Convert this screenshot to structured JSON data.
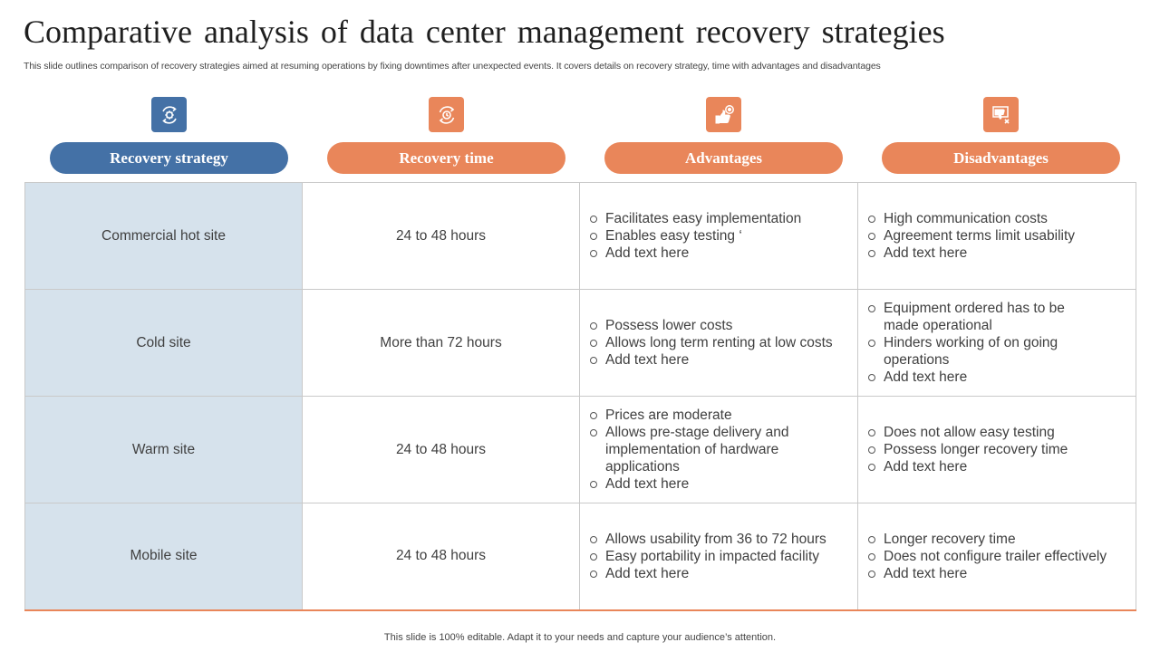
{
  "header": {
    "title": "Comparative analysis of data center management recovery strategies",
    "subtitle": "This slide outlines comparison of recovery strategies aimed at resuming operations by fixing downtimes after unexpected events. It covers details on recovery strategy, time with advantages and disadvantages"
  },
  "columns": [
    {
      "label": "Recovery strategy",
      "icon": "gear-cycle-icon",
      "color": "#4471a6"
    },
    {
      "label": "Recovery time",
      "icon": "clock-cycle-icon",
      "color": "#e9865a"
    },
    {
      "label": "Advantages",
      "icon": "thumbs-up-icon",
      "color": "#e9865a"
    },
    {
      "label": "Disadvantages",
      "icon": "thumbs-down-icon",
      "color": "#e9865a"
    }
  ],
  "rows": [
    {
      "strategy": "Commercial hot site",
      "time": "24 to 48 hours",
      "advantages": [
        "Facilitates easy implementation",
        "Enables easy testing ‘",
        "Add text here"
      ],
      "disadvantages": [
        "High communication costs",
        "Agreement terms limit usability",
        "Add text here"
      ]
    },
    {
      "strategy": "Cold site",
      "time": "More than 72 hours",
      "advantages": [
        "Possess lower costs",
        "Allows long term renting at low costs",
        "Add text here"
      ],
      "disadvantages": [
        "Equipment ordered has to be made operational",
        "Hinders working of on going operations",
        "Add text here"
      ]
    },
    {
      "strategy": "Warm site",
      "time": "24 to 48 hours",
      "advantages": [
        "Prices are moderate",
        "Allows pre-stage delivery and implementation of hardware applications",
        "Add text here"
      ],
      "disadvantages": [
        "Does not allow easy testing",
        "Possess longer recovery time",
        "Add text here"
      ]
    },
    {
      "strategy": "Mobile site",
      "time": "24 to 48 hours",
      "advantages": [
        "Allows usability from 36 to 72 hours",
        "Easy portability in impacted facility",
        "Add text here"
      ],
      "disadvantages": [
        "Longer recovery time",
        "Does not configure trailer effectively",
        "Add text here"
      ]
    }
  ],
  "footer": "This slide is 100% editable. Adapt it to your needs and capture your audience’s attention."
}
